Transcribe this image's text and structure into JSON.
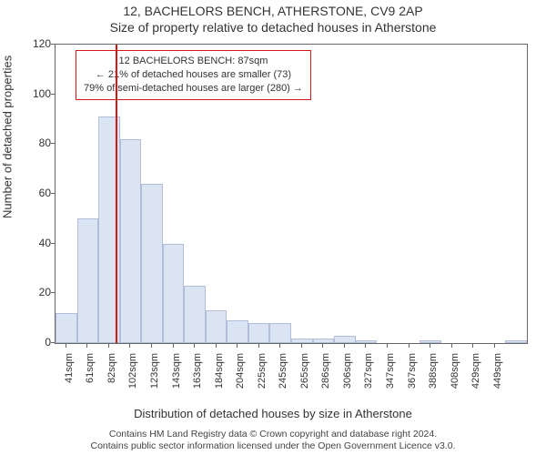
{
  "title_line1": "12, BACHELORS BENCH, ATHERSTONE, CV9 2AP",
  "title_line2": "Size of property relative to detached houses in Atherstone",
  "ylabel": "Number of detached properties",
  "xlabel": "Distribution of detached houses by size in Atherstone",
  "footer_line1": "Contains HM Land Registry data © Crown copyright and database right 2024.",
  "footer_line2": "Contains public sector information licensed under the Open Government Licence v3.0.",
  "chart": {
    "type": "histogram",
    "background_color": "#ffffff",
    "border_color": "#666666",
    "bar_fill": "#bfcee9",
    "bar_stroke": "#7488bb",
    "bar_opacity": 0.55,
    "marker_line_color": "#d11919",
    "annotation_border": "#d11919",
    "grid_color": "#666666",
    "x_start": 30,
    "bin_width": 20.45,
    "ylim": [
      0,
      120
    ],
    "ytick_step": 20,
    "marker_x": 87,
    "x_labels": [
      "41sqm",
      "61sqm",
      "82sqm",
      "102sqm",
      "123sqm",
      "143sqm",
      "163sqm",
      "184sqm",
      "204sqm",
      "225sqm",
      "245sqm",
      "265sqm",
      "286sqm",
      "306sqm",
      "327sqm",
      "347sqm",
      "367sqm",
      "388sqm",
      "408sqm",
      "429sqm",
      "449sqm"
    ],
    "values": [
      12,
      50,
      91,
      82,
      64,
      40,
      23,
      13,
      9,
      8,
      8,
      2,
      2,
      3,
      1,
      0,
      0,
      1,
      0,
      0,
      0,
      1
    ],
    "annotation": {
      "line1": "12 BACHELORS BENCH: 87sqm",
      "line2": "← 21% of detached houses are smaller (73)",
      "line3": "79% of semi-detached houses are larger (280) →"
    },
    "title_fontsize": 14,
    "label_fontsize": 13,
    "tick_fontsize": 12,
    "annot_fontsize": 11
  }
}
